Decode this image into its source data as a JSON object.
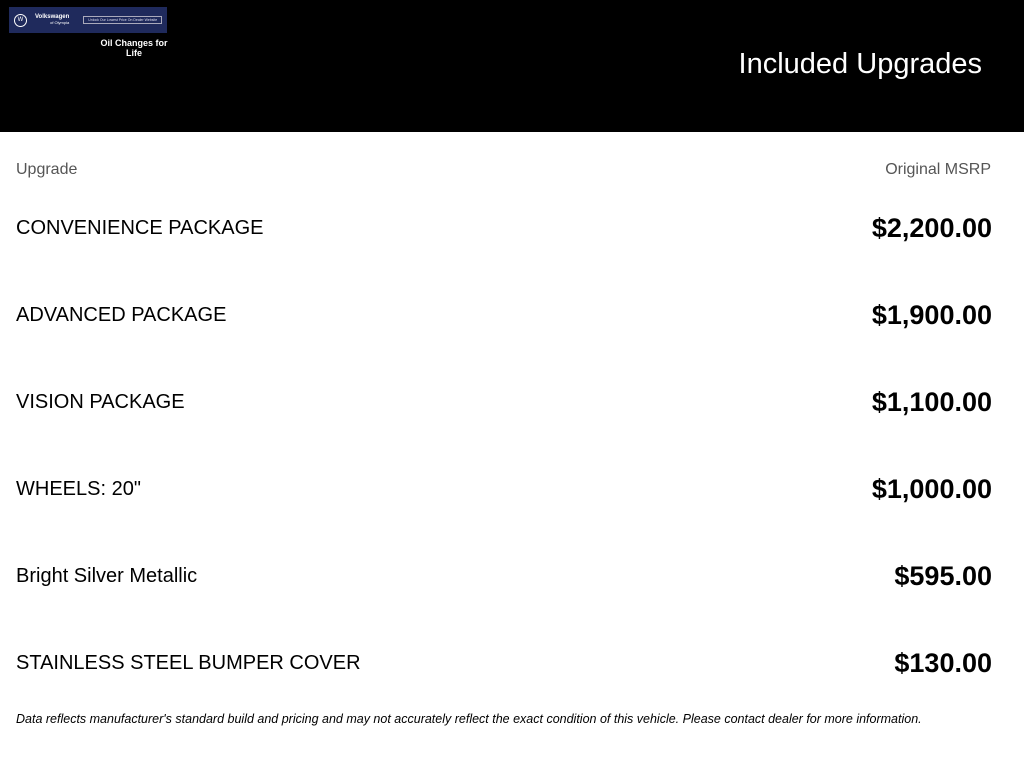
{
  "header": {
    "logo": {
      "brand": "Volkswagen",
      "dealer": "of Olympia",
      "cta": "Unlock Our Lowest Price On Dealer Website",
      "badge": "Oil Changes for Life"
    },
    "title": "Included Upgrades"
  },
  "table": {
    "columns": [
      "Upgrade",
      "Original MSRP"
    ],
    "rows": [
      {
        "name": "CONVENIENCE PACKAGE",
        "price": "$2,200.00"
      },
      {
        "name": "ADVANCED PACKAGE",
        "price": "$1,900.00"
      },
      {
        "name": "VISION PACKAGE",
        "price": "$1,100.00"
      },
      {
        "name": "WHEELS: 20\"",
        "price": "$1,000.00"
      },
      {
        "name": "Bright Silver Metallic",
        "price": "$595.00"
      },
      {
        "name": "STAINLESS STEEL BUMPER COVER",
        "price": "$130.00"
      }
    ]
  },
  "disclaimer": "Data reflects manufacturer's standard build and pricing and may not accurately reflect the exact condition of this vehicle. Please contact dealer for more information.",
  "colors": {
    "header_bg": "#000000",
    "banner_bg": "#1f2a5c"
  }
}
